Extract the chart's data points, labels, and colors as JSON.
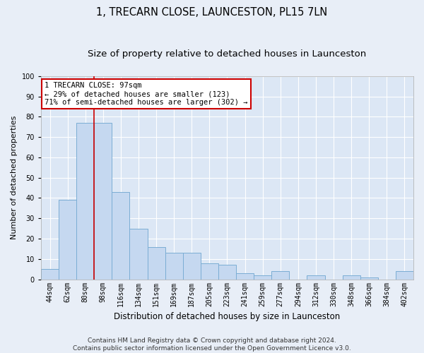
{
  "title": "1, TRECARN CLOSE, LAUNCESTON, PL15 7LN",
  "subtitle": "Size of property relative to detached houses in Launceston",
  "xlabel": "Distribution of detached houses by size in Launceston",
  "ylabel": "Number of detached properties",
  "bar_labels": [
    "44sqm",
    "62sqm",
    "80sqm",
    "98sqm",
    "116sqm",
    "134sqm",
    "151sqm",
    "169sqm",
    "187sqm",
    "205sqm",
    "223sqm",
    "241sqm",
    "259sqm",
    "277sqm",
    "294sqm",
    "312sqm",
    "330sqm",
    "348sqm",
    "366sqm",
    "384sqm",
    "402sqm"
  ],
  "bar_heights": [
    5,
    39,
    77,
    77,
    43,
    25,
    16,
    13,
    13,
    8,
    7,
    3,
    2,
    4,
    0,
    2,
    0,
    2,
    1,
    0,
    4
  ],
  "bar_color": "#c5d8f0",
  "bar_edge_color": "#7badd4",
  "vline_x_index": 2.5,
  "vline_color": "#cc0000",
  "annotation_text": "1 TRECARN CLOSE: 97sqm\n← 29% of detached houses are smaller (123)\n71% of semi-detached houses are larger (302) →",
  "annotation_box_color": "#ffffff",
  "annotation_box_edge_color": "#cc0000",
  "background_color": "#e8eef7",
  "plot_bg_color": "#dce7f5",
  "grid_color": "#ffffff",
  "footer_text": "Contains HM Land Registry data © Crown copyright and database right 2024.\nContains public sector information licensed under the Open Government Licence v3.0.",
  "ylim": [
    0,
    100
  ],
  "yticks": [
    0,
    10,
    20,
    30,
    40,
    50,
    60,
    70,
    80,
    90,
    100
  ],
  "title_fontsize": 10.5,
  "subtitle_fontsize": 9.5,
  "xlabel_fontsize": 8.5,
  "ylabel_fontsize": 8,
  "tick_fontsize": 7,
  "annotation_fontsize": 7.5,
  "footer_fontsize": 6.5
}
